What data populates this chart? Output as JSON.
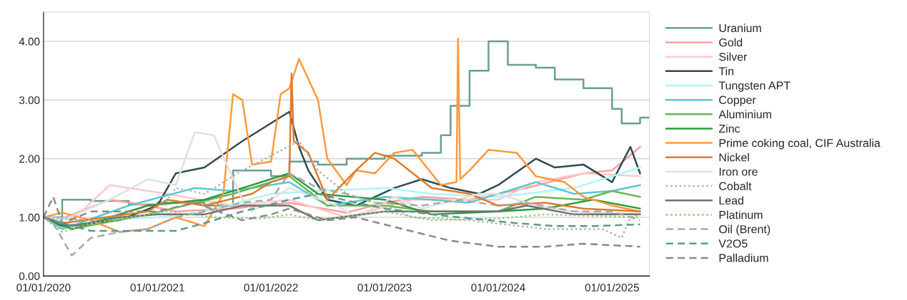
{
  "chart_data": {
    "type": "line",
    "xlim": [
      "2020-01-01",
      "2025-05-01"
    ],
    "xticks": [
      {
        "value": "2020-01-01",
        "label": "01/01/2020"
      },
      {
        "value": "2021-01-01",
        "label": "01/01/2021"
      },
      {
        "value": "2022-01-01",
        "label": "01/01/2022"
      },
      {
        "value": "2023-01-01",
        "label": "01/01/2023"
      },
      {
        "value": "2024-01-01",
        "label": "01/01/2024"
      },
      {
        "value": "2025-01-01",
        "label": "01/01/2025"
      }
    ],
    "ylim": [
      0,
      4.5
    ],
    "yticks": [
      {
        "value": 0,
        "label": "0.00"
      },
      {
        "value": 1,
        "label": "1.00"
      },
      {
        "value": 2,
        "label": "2.00"
      },
      {
        "value": 3,
        "label": "3.00"
      },
      {
        "value": 4,
        "label": "4.00"
      }
    ],
    "grid": "y",
    "legend": "right",
    "series": [
      {
        "name": "Uranium",
        "type": "step",
        "color": "#6a9e8f",
        "line_style": "solid",
        "x": [
          "2020-01",
          "2020-03",
          "2020-06",
          "2020-10",
          "2021-01",
          "2021-06",
          "2021-09",
          "2022-01",
          "2022-03",
          "2022-06",
          "2022-09",
          "2023-01",
          "2023-05",
          "2023-07",
          "2023-08",
          "2023-10",
          "2023-12",
          "2024-02",
          "2024-05",
          "2024-07",
          "2024-10",
          "2025-01",
          "2025-02",
          "2025-04",
          "2025-05"
        ],
        "values": [
          1.0,
          1.3,
          1.28,
          1.22,
          1.25,
          1.2,
          1.8,
          1.7,
          1.95,
          1.9,
          2.0,
          2.05,
          2.1,
          2.4,
          2.9,
          3.5,
          4.0,
          3.6,
          3.55,
          3.35,
          3.2,
          2.85,
          2.6,
          2.7,
          2.7
        ]
      },
      {
        "name": "Gold",
        "color": "#ff9e9e",
        "line_style": "solid",
        "x": [
          "2020-01",
          "2020-03",
          "2020-08",
          "2020-12",
          "2021-03",
          "2021-09",
          "2022-03",
          "2022-09",
          "2023-01",
          "2023-05",
          "2023-10",
          "2024-04",
          "2024-10",
          "2025-01",
          "2025-04"
        ],
        "values": [
          1.0,
          0.98,
          1.3,
          1.2,
          1.1,
          1.15,
          1.25,
          1.08,
          1.25,
          1.35,
          1.3,
          1.5,
          1.75,
          1.8,
          2.2
        ]
      },
      {
        "name": "Silver",
        "color": "#ffc8cc",
        "line_style": "solid",
        "x": [
          "2020-01",
          "2020-03",
          "2020-08",
          "2021-02",
          "2021-09",
          "2022-03",
          "2022-09",
          "2023-04",
          "2024-01",
          "2024-05",
          "2024-10",
          "2025-04"
        ],
        "values": [
          1.0,
          0.8,
          1.55,
          1.4,
          1.2,
          1.3,
          1.0,
          1.3,
          1.3,
          1.6,
          1.75,
          1.7
        ]
      },
      {
        "name": "Tin",
        "color": "#2e4b4b",
        "line_style": "solid",
        "x": [
          "2020-01",
          "2020-03",
          "2020-09",
          "2021-01",
          "2021-03",
          "2021-06",
          "2021-10",
          "2022-03",
          "2022-04",
          "2022-05",
          "2022-07",
          "2022-10",
          "2023-02",
          "2023-05",
          "2023-08",
          "2023-11",
          "2024-01",
          "2024-05",
          "2024-07",
          "2024-10",
          "2025-01",
          "2025-03",
          "2025-04"
        ],
        "values": [
          1.0,
          0.85,
          0.95,
          1.2,
          1.75,
          1.85,
          2.3,
          2.8,
          2.2,
          1.8,
          1.3,
          1.2,
          1.5,
          1.65,
          1.5,
          1.4,
          1.55,
          2.0,
          1.85,
          1.9,
          1.6,
          2.2,
          1.75
        ]
      },
      {
        "name": "Tungsten APT",
        "color": "#b0f4f8",
        "line_style": "solid",
        "x": [
          "2020-01",
          "2020-06",
          "2021-01",
          "2021-06",
          "2022-01",
          "2022-06",
          "2023-01",
          "2023-06",
          "2024-01",
          "2024-09",
          "2025-01",
          "2025-04"
        ],
        "values": [
          1.0,
          0.95,
          1.0,
          1.1,
          1.4,
          1.45,
          1.5,
          1.4,
          1.35,
          1.5,
          1.7,
          1.85
        ]
      },
      {
        "name": "Copper",
        "color": "#5ac8d4",
        "line_style": "solid",
        "x": [
          "2020-01",
          "2020-03",
          "2020-10",
          "2021-05",
          "2021-09",
          "2022-03",
          "2022-07",
          "2023-01",
          "2023-06",
          "2023-10",
          "2024-05",
          "2024-09",
          "2025-01",
          "2025-04"
        ],
        "values": [
          1.0,
          0.8,
          1.2,
          1.5,
          1.45,
          1.6,
          1.2,
          1.35,
          1.3,
          1.25,
          1.6,
          1.4,
          1.45,
          1.55
        ]
      },
      {
        "name": "Aluminium",
        "color": "#6ab557",
        "line_style": "solid",
        "x": [
          "2020-01",
          "2020-04",
          "2020-12",
          "2021-09",
          "2022-03",
          "2022-07",
          "2023-01",
          "2023-06",
          "2024-01",
          "2024-05",
          "2024-10",
          "2025-01",
          "2025-04"
        ],
        "values": [
          1.0,
          0.8,
          1.05,
          1.4,
          1.7,
          1.2,
          1.2,
          1.1,
          1.1,
          1.35,
          1.3,
          1.45,
          1.35
        ]
      },
      {
        "name": "Zinc",
        "color": "#2e9a3a",
        "line_style": "solid",
        "x": [
          "2020-01",
          "2020-04",
          "2020-12",
          "2021-06",
          "2021-10",
          "2022-03",
          "2022-06",
          "2023-01",
          "2023-06",
          "2024-01",
          "2024-06",
          "2024-11",
          "2025-04"
        ],
        "values": [
          1.0,
          0.8,
          1.2,
          1.3,
          1.5,
          1.75,
          1.4,
          1.3,
          1.05,
          1.1,
          1.15,
          1.3,
          1.15
        ]
      },
      {
        "name": "Prime coking coal, CIF Australia",
        "color": "#ff9a3a",
        "line_style": "solid",
        "x": [
          "2020-01",
          "2020-03",
          "2020-06",
          "2020-09",
          "2020-12",
          "2021-03",
          "2021-06",
          "2021-08",
          "2021-09",
          "2021-10",
          "2021-11",
          "2022-01",
          "2022-02",
          "2022-03",
          "2022-04",
          "2022-06",
          "2022-07",
          "2022-09",
          "2022-10",
          "2022-12",
          "2023-02",
          "2023-04",
          "2023-07",
          "2023-08-20",
          "2023-08-25",
          "2023-09-01",
          "2023-10",
          "2023-12",
          "2024-03",
          "2024-05",
          "2024-08",
          "2024-10",
          "2025-01",
          "2025-04"
        ],
        "values": [
          1.0,
          1.08,
          0.95,
          0.75,
          0.8,
          1.0,
          0.85,
          1.4,
          3.1,
          3.0,
          1.9,
          1.95,
          3.1,
          3.2,
          3.7,
          3.0,
          2.0,
          1.55,
          1.8,
          1.75,
          2.1,
          2.15,
          1.55,
          1.6,
          4.05,
          1.65,
          1.8,
          2.15,
          2.1,
          1.7,
          1.6,
          1.35,
          1.2,
          1.1
        ]
      },
      {
        "name": "Nickel",
        "color": "#e07b2a",
        "line_style": "solid",
        "x": [
          "2020-01",
          "2020-03",
          "2020-12",
          "2021-02",
          "2021-06",
          "2021-11",
          "2022-01",
          "2022-03-01",
          "2022-03-08",
          "2022-03-15",
          "2022-05",
          "2022-07",
          "2022-10",
          "2022-12",
          "2023-02",
          "2023-06",
          "2023-10",
          "2024-01",
          "2024-06",
          "2024-10",
          "2025-04"
        ],
        "values": [
          1.0,
          0.9,
          1.1,
          1.3,
          1.2,
          1.4,
          1.6,
          1.7,
          3.45,
          2.3,
          2.1,
          1.3,
          1.8,
          2.1,
          2.0,
          1.5,
          1.4,
          1.2,
          1.25,
          1.15,
          1.1
        ]
      },
      {
        "name": "Iron ore",
        "color": "#e0e0e0",
        "line_style": "solid",
        "x": [
          "2020-01",
          "2020-03",
          "2020-08",
          "2020-12",
          "2021-03",
          "2021-05",
          "2021-07",
          "2021-10",
          "2021-11",
          "2022-03",
          "2022-08",
          "2022-10",
          "2023-02",
          "2023-05",
          "2023-11",
          "2024-01",
          "2024-05",
          "2024-09",
          "2025-04"
        ],
        "values": [
          1.0,
          0.95,
          1.3,
          1.65,
          1.55,
          2.45,
          2.4,
          1.3,
          1.1,
          1.5,
          1.2,
          1.0,
          1.35,
          1.15,
          1.4,
          1.4,
          1.2,
          1.1,
          1.05
        ]
      },
      {
        "name": "Cobalt",
        "color": "#b0b0b0",
        "line_style": "dotted",
        "x": [
          "2020-01",
          "2020-06",
          "2021-01",
          "2021-03",
          "2021-06",
          "2021-10",
          "2022-04",
          "2022-06",
          "2022-09",
          "2023-01",
          "2023-04",
          "2023-10",
          "2024-06",
          "2024-12",
          "2025-02",
          "2025-03",
          "2025-04"
        ],
        "values": [
          1.0,
          0.95,
          1.05,
          1.5,
          1.4,
          1.8,
          2.3,
          1.8,
          1.4,
          1.2,
          1.0,
          0.95,
          0.8,
          0.8,
          0.65,
          1.0,
          1.05
        ]
      },
      {
        "name": "Lead",
        "color": "#707070",
        "line_style": "solid",
        "x": [
          "2020-01",
          "2020-04",
          "2020-09",
          "2021-01",
          "2021-06",
          "2021-10",
          "2022-03",
          "2022-06",
          "2023-01",
          "2023-06",
          "2024-01",
          "2024-04",
          "2024-09",
          "2025-04"
        ],
        "values": [
          1.0,
          0.85,
          1.0,
          1.05,
          1.05,
          1.2,
          1.2,
          0.95,
          1.1,
          1.1,
          1.1,
          1.2,
          1.05,
          1.05
        ]
      },
      {
        "name": "Platinum",
        "color": "#8ccc78",
        "line_style": "dotted",
        "x": [
          "2020-01",
          "2020-03",
          "2020-06",
          "2021-02",
          "2021-07",
          "2021-12",
          "2022-03",
          "2022-06",
          "2023-01",
          "2023-06",
          "2024-01",
          "2024-06",
          "2025-04"
        ],
        "values": [
          1.0,
          0.75,
          0.9,
          1.1,
          1.0,
          0.98,
          1.05,
          0.95,
          1.1,
          0.95,
          0.98,
          1.05,
          1.0
        ]
      },
      {
        "name": "Oil (Brent)",
        "color": "#a8a8a8",
        "line_style": "dashed",
        "x": [
          "2020-01",
          "2020-02",
          "2020-04",
          "2020-06",
          "2020-09",
          "2020-12",
          "2021-03",
          "2021-06",
          "2021-10",
          "2022-01",
          "2022-03",
          "2022-06",
          "2022-09",
          "2022-12",
          "2023-05",
          "2023-09",
          "2024-01",
          "2024-04",
          "2024-09",
          "2025-01",
          "2025-04"
        ],
        "values": [
          1.0,
          0.9,
          0.35,
          0.65,
          0.75,
          0.8,
          1.0,
          1.1,
          1.25,
          1.3,
          1.75,
          1.5,
          1.4,
          1.25,
          1.2,
          1.3,
          1.2,
          1.25,
          1.1,
          1.1,
          0.95
        ]
      },
      {
        "name": "V2O5",
        "color": "#5a9a8c",
        "line_style": "dashed",
        "x": [
          "2020-01",
          "2020-03",
          "2020-06",
          "2021-03",
          "2021-06",
          "2021-10",
          "2022-03",
          "2022-06",
          "2022-10",
          "2023-01",
          "2023-06",
          "2023-12",
          "2024-03",
          "2024-07",
          "2024-11",
          "2025-04"
        ],
        "values": [
          1.0,
          0.9,
          0.77,
          0.77,
          0.9,
          1.1,
          1.3,
          1.4,
          1.25,
          1.15,
          1.05,
          0.95,
          0.9,
          0.85,
          0.85,
          0.88
        ]
      },
      {
        "name": "Palladium",
        "color": "#8a8a8a",
        "line_style": "dashed",
        "x": [
          "2020-01",
          "2020-02",
          "2020-03",
          "2020-06",
          "2021-01",
          "2021-05",
          "2021-10",
          "2022-01",
          "2022-03",
          "2022-07",
          "2022-10",
          "2023-03",
          "2023-08",
          "2024-01",
          "2024-06",
          "2024-10",
          "2025-04"
        ],
        "values": [
          1.0,
          1.35,
          0.9,
          1.1,
          1.1,
          1.25,
          0.95,
          1.05,
          1.15,
          0.95,
          1.0,
          0.8,
          0.6,
          0.5,
          0.5,
          0.55,
          0.5
        ]
      }
    ]
  }
}
